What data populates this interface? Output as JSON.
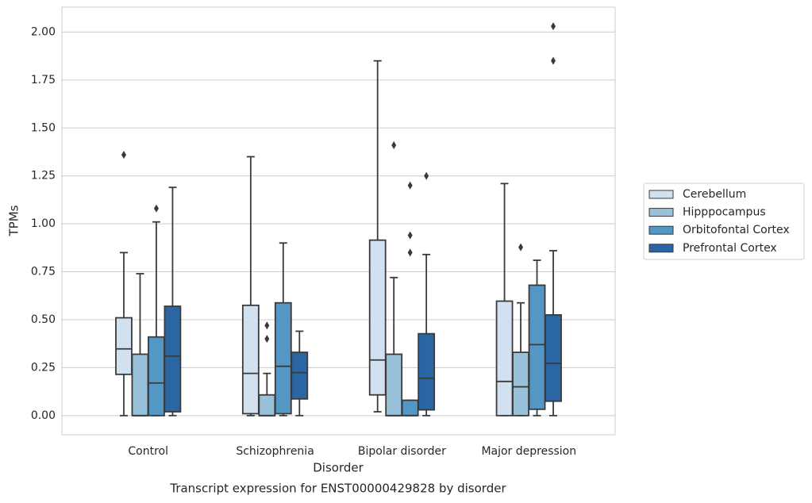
{
  "chart_data": {
    "type": "box",
    "title": "Transcript expression for ENST00000429828 by disorder",
    "xlabel": "Disorder",
    "ylabel": "TPMs",
    "categories": [
      "Control",
      "Schizophrenia",
      "Bipolar disorder",
      "Major depression"
    ],
    "ylim": [
      -0.1,
      2.13
    ],
    "yticks": [
      {
        "value": 0,
        "label": "0.00"
      },
      {
        "value": 0.25,
        "label": "0.25"
      },
      {
        "value": 0.5,
        "label": "0.50"
      },
      {
        "value": 0.75,
        "label": "0.75"
      },
      {
        "value": 1,
        "label": "1.00"
      },
      {
        "value": 1.25,
        "label": "1.25"
      },
      {
        "value": 1.5,
        "label": "1.50"
      },
      {
        "value": 1.75,
        "label": "1.75"
      },
      {
        "value": 2,
        "label": "2.00"
      }
    ],
    "grid": true,
    "legend": "right",
    "series": [
      {
        "name": "Cerebellum",
        "color": "#d2e1ef",
        "values": [
          {
            "whislo": 0,
            "q1": 0.215,
            "med": 0.348,
            "q3": 0.51,
            "whishi": 0.85,
            "fliers": [
              1.36
            ]
          },
          {
            "whislo": 0,
            "q1": 0.01,
            "med": 0.22,
            "q3": 0.575,
            "whishi": 1.35,
            "fliers": []
          },
          {
            "whislo": 0.02,
            "q1": 0.108,
            "med": 0.29,
            "q3": 0.915,
            "whishi": 1.85,
            "fliers": []
          },
          {
            "whislo": 0,
            "q1": 0,
            "med": 0.178,
            "q3": 0.597,
            "whishi": 1.21,
            "fliers": []
          }
        ]
      },
      {
        "name": "Hipppocampus",
        "color": "#99c1da",
        "values": [
          {
            "whislo": 0,
            "q1": 0,
            "med": 0,
            "q3": 0.32,
            "whishi": 0.74,
            "fliers": []
          },
          {
            "whislo": 0,
            "q1": 0,
            "med": 0,
            "q3": 0.108,
            "whishi": 0.22,
            "fliers": [
              0.47,
              0.4
            ]
          },
          {
            "whislo": 0,
            "q1": 0,
            "med": 0,
            "q3": 0.32,
            "whishi": 0.72,
            "fliers": [
              1.41
            ]
          },
          {
            "whislo": 0,
            "q1": 0,
            "med": 0.15,
            "q3": 0.33,
            "whishi": 0.588,
            "fliers": [
              0.878
            ]
          }
        ]
      },
      {
        "name": "Orbitofontal Cortex",
        "color": "#5497c5",
        "values": [
          {
            "whislo": 0,
            "q1": 0,
            "med": 0.17,
            "q3": 0.41,
            "whishi": 1.01,
            "fliers": [
              1.08
            ]
          },
          {
            "whislo": 0,
            "q1": 0.01,
            "med": 0.257,
            "q3": 0.588,
            "whishi": 0.9,
            "fliers": []
          },
          {
            "whislo": 0,
            "q1": 0,
            "med": 0,
            "q3": 0.08,
            "whishi": 0.08,
            "fliers": [
              1.2,
              0.94,
              0.85
            ]
          },
          {
            "whislo": 0,
            "q1": 0.033,
            "med": 0.37,
            "q3": 0.68,
            "whishi": 0.81,
            "fliers": []
          }
        ]
      },
      {
        "name": "Prefrontal Cortex",
        "color": "#2a66a3",
        "values": [
          {
            "whislo": 0,
            "q1": 0.02,
            "med": 0.31,
            "q3": 0.57,
            "whishi": 1.19,
            "fliers": []
          },
          {
            "whislo": 0,
            "q1": 0.087,
            "med": 0.224,
            "q3": 0.33,
            "whishi": 0.44,
            "fliers": []
          },
          {
            "whislo": 0,
            "q1": 0.03,
            "med": 0.195,
            "q3": 0.427,
            "whishi": 0.84,
            "fliers": [
              1.25
            ]
          },
          {
            "whislo": 0,
            "q1": 0.075,
            "med": 0.273,
            "q3": 0.525,
            "whishi": 0.86,
            "fliers": [
              2.03,
              1.85
            ]
          }
        ]
      }
    ]
  }
}
